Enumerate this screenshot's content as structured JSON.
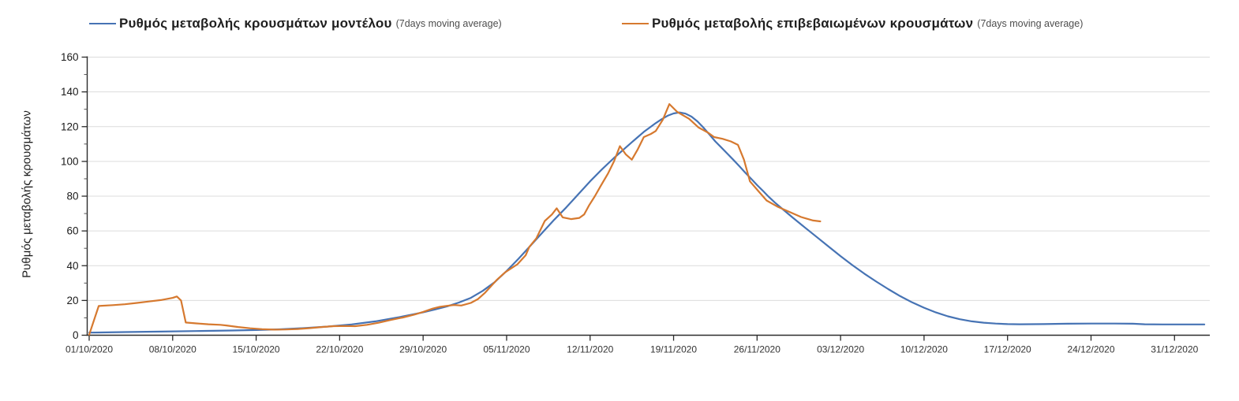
{
  "page": {
    "background": "#ffffff"
  },
  "legend": [
    {
      "label": "Ρυθμός μεταβολής κρουσμάτων μοντέλου",
      "suffix": "(7days moving average)",
      "color": "#4673b4"
    },
    {
      "label": "Ρυθμός μεταβολής επιβεβαιωμένων κρουσμάτων",
      "suffix": "(7days moving average)",
      "color": "#d6792f"
    }
  ],
  "y_axis": {
    "title": "Ρυθμός μεταβολής κρουσμάτων"
  },
  "chart_data": {
    "type": "line",
    "title": "",
    "xlabel": "",
    "ylabel": "Ρυθμός μεταβολής κρουσμάτων",
    "x_unit": "days since 01/10/2020",
    "ylim": [
      0,
      160
    ],
    "y_tick_step": 20,
    "y_minor_tick_step": 10,
    "y_tick_values": [
      0,
      20,
      40,
      60,
      80,
      100,
      120,
      140,
      160
    ],
    "x_tick_days": [
      0,
      7,
      14,
      21,
      28,
      35,
      42,
      49,
      56,
      63,
      70,
      77,
      84,
      91
    ],
    "x_tick_labels": [
      "01/10/2020",
      "08/10/2020",
      "15/10/2020",
      "22/10/2020",
      "29/10/2020",
      "05/11/2020",
      "12/11/2020",
      "19/11/2020",
      "26/11/2020",
      "03/12/2020",
      "10/12/2020",
      "17/12/2020",
      "24/12/2020",
      "31/12/2020"
    ],
    "grid": {
      "horizontal": true,
      "vertical": false,
      "color": "#dcdcdc"
    },
    "legend_position": "top",
    "series": [
      {
        "name": "Ρυθμός μεταβολής κρουσμάτων μοντέλου (7days moving average)",
        "color": "#4673b4",
        "points": [
          [
            0,
            1.5
          ],
          [
            3,
            1.8
          ],
          [
            6,
            2.1
          ],
          [
            9,
            2.4
          ],
          [
            12,
            2.7
          ],
          [
            14,
            3.0
          ],
          [
            16,
            3.4
          ],
          [
            18,
            4.1
          ],
          [
            20,
            5.0
          ],
          [
            22,
            6.2
          ],
          [
            24,
            8.0
          ],
          [
            26,
            10.4
          ],
          [
            28,
            13.2
          ],
          [
            29,
            14.8
          ],
          [
            30,
            16.6
          ],
          [
            31,
            18.8
          ],
          [
            32,
            21.5
          ],
          [
            33,
            25.5
          ],
          [
            34,
            30.5
          ],
          [
            35,
            37.0
          ],
          [
            36,
            44.0
          ],
          [
            37,
            51.5
          ],
          [
            38,
            59.0
          ],
          [
            39,
            66.5
          ],
          [
            40,
            73.5
          ],
          [
            41,
            81.0
          ],
          [
            42,
            88.5
          ],
          [
            43,
            95.5
          ],
          [
            44,
            102.0
          ],
          [
            45,
            108.0
          ],
          [
            45.5,
            111.0
          ],
          [
            46,
            114.0
          ],
          [
            46.5,
            117.0
          ],
          [
            47,
            119.5
          ],
          [
            47.5,
            122.0
          ],
          [
            48,
            124.3
          ],
          [
            48.5,
            126.3
          ],
          [
            49,
            127.6
          ],
          [
            49.5,
            128.2
          ],
          [
            50,
            127.5
          ],
          [
            50.5,
            125.8
          ],
          [
            51,
            123.0
          ],
          [
            51.5,
            119.5
          ],
          [
            52,
            115.5
          ],
          [
            52.5,
            111.5
          ],
          [
            53,
            108.0
          ],
          [
            53.5,
            104.5
          ],
          [
            54,
            101.0
          ],
          [
            54.5,
            97.3
          ],
          [
            55,
            93.6
          ],
          [
            55.5,
            90.0
          ],
          [
            56,
            86.4
          ],
          [
            56.5,
            83.0
          ],
          [
            57,
            79.5
          ],
          [
            57.5,
            76.3
          ],
          [
            58,
            73.4
          ],
          [
            58.5,
            70.5
          ],
          [
            59,
            67.6
          ],
          [
            59.5,
            64.8
          ],
          [
            60,
            62.0
          ],
          [
            61,
            56.5
          ],
          [
            62,
            51.0
          ],
          [
            63,
            45.5
          ],
          [
            64,
            40.3
          ],
          [
            65,
            35.4
          ],
          [
            66,
            30.8
          ],
          [
            67,
            26.5
          ],
          [
            68,
            22.5
          ],
          [
            69,
            18.9
          ],
          [
            70,
            15.8
          ],
          [
            71,
            13.1
          ],
          [
            72,
            10.9
          ],
          [
            73,
            9.2
          ],
          [
            74,
            8.0
          ],
          [
            75,
            7.2
          ],
          [
            76,
            6.7
          ],
          [
            77,
            6.4
          ],
          [
            78,
            6.3
          ],
          [
            80,
            6.4
          ],
          [
            82,
            6.6
          ],
          [
            84,
            6.7
          ],
          [
            86,
            6.7
          ],
          [
            87.5,
            6.6
          ],
          [
            88.5,
            6.3
          ],
          [
            90,
            6.2
          ],
          [
            92,
            6.2
          ],
          [
            93.5,
            6.2
          ]
        ]
      },
      {
        "name": "Ρυθμός μεταβολής επιβεβαιωμένων κρουσμάτων (7days moving average)",
        "color": "#d6792f",
        "points": [
          [
            0,
            0.3
          ],
          [
            0.8,
            16.8
          ],
          [
            2,
            17.3
          ],
          [
            3,
            17.8
          ],
          [
            4,
            18.6
          ],
          [
            5,
            19.4
          ],
          [
            6,
            20.2
          ],
          [
            7,
            21.5
          ],
          [
            7.35,
            22.3
          ],
          [
            7.7,
            20.0
          ],
          [
            8.1,
            7.3
          ],
          [
            9,
            6.8
          ],
          [
            10,
            6.3
          ],
          [
            11,
            6.0
          ],
          [
            11.5,
            5.6
          ],
          [
            12.5,
            4.7
          ],
          [
            13.5,
            4.0
          ],
          [
            14.5,
            3.5
          ],
          [
            15.5,
            3.2
          ],
          [
            16.5,
            3.3
          ],
          [
            17.5,
            3.6
          ],
          [
            18.5,
            4.1
          ],
          [
            19.5,
            4.7
          ],
          [
            20.5,
            5.2
          ],
          [
            21.5,
            5.3
          ],
          [
            22.3,
            5.2
          ],
          [
            23.3,
            6.0
          ],
          [
            24.3,
            7.2
          ],
          [
            25.3,
            8.8
          ],
          [
            26.3,
            10.2
          ],
          [
            27.3,
            11.9
          ],
          [
            28,
            13.4
          ],
          [
            28.8,
            15.3
          ],
          [
            29.4,
            16.3
          ],
          [
            30,
            16.9
          ],
          [
            30.6,
            17.4
          ],
          [
            31.2,
            17.1
          ],
          [
            32,
            18.6
          ],
          [
            32.6,
            20.8
          ],
          [
            33.2,
            24.5
          ],
          [
            33.8,
            29.0
          ],
          [
            34.2,
            32.0
          ],
          [
            34.9,
            36.3
          ],
          [
            35.9,
            40.8
          ],
          [
            36.6,
            46.0
          ],
          [
            36.9,
            50.8
          ],
          [
            37.5,
            55.8
          ],
          [
            38.2,
            65.7
          ],
          [
            38.8,
            69.5
          ],
          [
            39.2,
            73.0
          ],
          [
            39.7,
            67.8
          ],
          [
            40.4,
            66.8
          ],
          [
            41.1,
            67.5
          ],
          [
            41.5,
            69.5
          ],
          [
            41.9,
            74.5
          ],
          [
            42.4,
            80.0
          ],
          [
            42.9,
            86.0
          ],
          [
            43.5,
            93.0
          ],
          [
            44.0,
            100.0
          ],
          [
            44.5,
            108.8
          ],
          [
            45.0,
            104.0
          ],
          [
            45.5,
            101.0
          ],
          [
            46.0,
            107.0
          ],
          [
            46.5,
            114.0
          ],
          [
            47.1,
            115.8
          ],
          [
            47.5,
            117.5
          ],
          [
            48.1,
            124.0
          ],
          [
            48.65,
            133.0
          ],
          [
            49.3,
            128.5
          ],
          [
            50.3,
            124.5
          ],
          [
            51.1,
            119.5
          ],
          [
            51.9,
            116.5
          ],
          [
            52.4,
            114.0
          ],
          [
            53.1,
            113.0
          ],
          [
            53.8,
            111.5
          ],
          [
            54.4,
            109.5
          ],
          [
            54.9,
            101.0
          ],
          [
            55.4,
            88.5
          ],
          [
            56.1,
            83.0
          ],
          [
            56.8,
            77.5
          ],
          [
            57.7,
            74.0
          ],
          [
            58.7,
            71.0
          ],
          [
            59.7,
            68.0
          ],
          [
            60.7,
            66.0
          ],
          [
            61.3,
            65.5
          ]
        ]
      }
    ]
  }
}
